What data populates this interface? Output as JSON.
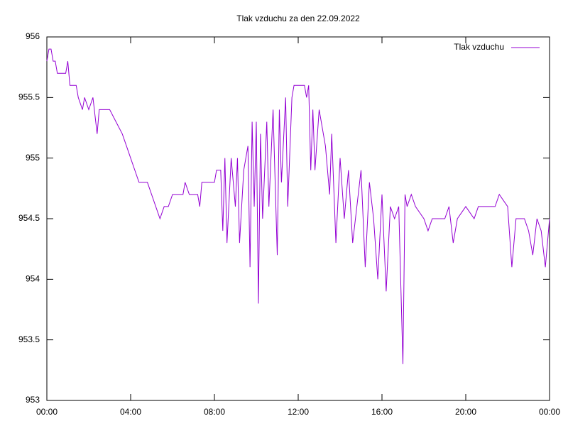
{
  "chart_data": {
    "type": "line",
    "title": "Tlak vzduchu za den 22.09.2022",
    "x": [
      0,
      0.1,
      0.2,
      0.3,
      0.4,
      0.5,
      0.9,
      1.0,
      1.1,
      1.4,
      1.5,
      1.7,
      1.8,
      2.0,
      2.2,
      2.4,
      2.5,
      2.6,
      3.0,
      3.3,
      3.6,
      3.8,
      4.0,
      4.2,
      4.4,
      4.8,
      5.0,
      5.2,
      5.4,
      5.6,
      5.8,
      6.0,
      6.5,
      6.6,
      6.8,
      7.2,
      7.3,
      7.4,
      7.8,
      8.0,
      8.1,
      8.3,
      8.4,
      8.5,
      8.6,
      8.8,
      9.0,
      9.1,
      9.2,
      9.4,
      9.6,
      9.7,
      9.8,
      9.9,
      10.0,
      10.1,
      10.2,
      10.3,
      10.5,
      10.6,
      10.8,
      11.0,
      11.1,
      11.2,
      11.4,
      11.5,
      11.7,
      11.8,
      12.0,
      12.3,
      12.4,
      12.5,
      12.6,
      12.7,
      12.8,
      13.0,
      13.3,
      13.5,
      13.6,
      13.8,
      14.0,
      14.2,
      14.4,
      14.6,
      15.0,
      15.2,
      15.4,
      15.6,
      15.8,
      16.0,
      16.2,
      16.4,
      16.6,
      16.8,
      17.0,
      17.1,
      17.2,
      17.4,
      17.6,
      18.0,
      18.2,
      18.4,
      19.0,
      19.2,
      19.4,
      19.6,
      20.0,
      20.4,
      20.6,
      21.0,
      21.4,
      21.6,
      22.0,
      22.2,
      22.4,
      22.8,
      23.0,
      23.2,
      23.4,
      23.6,
      23.8,
      24.0
    ],
    "series": [
      {
        "name": "Tlak vzduchu",
        "color": "#9400d3",
        "values": [
          955.8,
          955.9,
          955.9,
          955.8,
          955.8,
          955.7,
          955.7,
          955.8,
          955.6,
          955.6,
          955.5,
          955.4,
          955.5,
          955.4,
          955.5,
          955.2,
          955.4,
          955.4,
          955.4,
          955.3,
          955.2,
          955.1,
          955.0,
          954.9,
          954.8,
          954.8,
          954.7,
          954.6,
          954.5,
          954.6,
          954.6,
          954.7,
          954.7,
          954.8,
          954.7,
          954.7,
          954.6,
          954.8,
          954.8,
          954.8,
          954.9,
          954.9,
          954.4,
          955.0,
          954.3,
          955.0,
          954.6,
          955.0,
          954.3,
          954.9,
          955.1,
          954.1,
          955.3,
          954.6,
          955.3,
          953.8,
          955.2,
          954.5,
          955.3,
          954.6,
          955.4,
          954.2,
          955.4,
          954.8,
          955.5,
          954.6,
          955.5,
          955.6,
          955.6,
          955.6,
          955.5,
          955.6,
          954.9,
          955.4,
          954.9,
          955.4,
          955.1,
          954.7,
          955.2,
          954.3,
          955.0,
          954.5,
          954.9,
          954.3,
          954.9,
          954.1,
          954.8,
          954.5,
          954.0,
          954.7,
          953.9,
          954.6,
          954.5,
          954.6,
          953.3,
          954.7,
          954.6,
          954.7,
          954.6,
          954.5,
          954.4,
          954.5,
          954.5,
          954.6,
          954.3,
          954.5,
          954.6,
          954.5,
          954.6,
          954.6,
          954.6,
          954.7,
          954.6,
          954.1,
          954.5,
          954.5,
          954.4,
          954.2,
          954.5,
          954.4,
          954.1,
          954.5
        ]
      }
    ],
    "xlim": [
      0,
      24
    ],
    "xticks": [
      {
        "value": 0,
        "label": "00:00"
      },
      {
        "value": 4,
        "label": "04:00"
      },
      {
        "value": 8,
        "label": "08:00"
      },
      {
        "value": 12,
        "label": "12:00"
      },
      {
        "value": 16,
        "label": "16:00"
      },
      {
        "value": 20,
        "label": "20:00"
      },
      {
        "value": 24,
        "label": "00:00"
      }
    ],
    "ylim": [
      953,
      956
    ],
    "yticks": [
      953,
      953.5,
      954,
      954.5,
      955,
      955.5,
      956
    ],
    "legend": "top-right"
  }
}
